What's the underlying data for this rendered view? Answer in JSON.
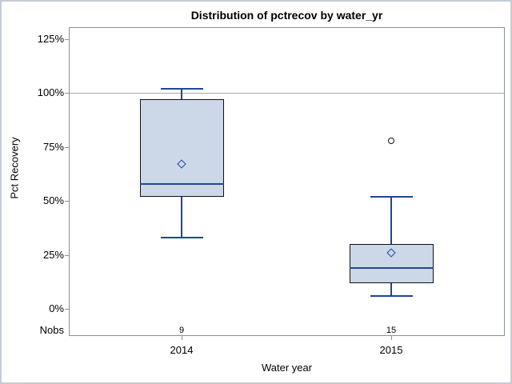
{
  "title": "Distribution of pctrecov by water_yr",
  "colors": {
    "box_fill": "#ccd8e8",
    "box_border": "#0f1216",
    "line_blue": "#1d4799",
    "outlier": "#0f1216",
    "frame_gray": "#8b9199",
    "ref_line_gray": "#a4aab1"
  },
  "chart_data": {
    "type": "box",
    "title": "Distribution of pctrecov by water_yr",
    "xlabel": "Water year",
    "ylabel": "Pct Recovery",
    "ylim": [
      0,
      125
    ],
    "y_tick_values": [
      0,
      25,
      50,
      75,
      100,
      125
    ],
    "y_tick_labels": [
      "0%",
      "25%",
      "50%",
      "75%",
      "100%",
      "125%"
    ],
    "reference_line_value": 100,
    "grid": false,
    "legend": false,
    "categories": [
      "2014",
      "2015"
    ],
    "nobs_row_label": "Nobs",
    "series": [
      {
        "category": "2014",
        "nobs": "9",
        "whisker_low": 33,
        "q1": 52,
        "median": 58,
        "q3": 97,
        "whisker_high": 102,
        "mean": 67,
        "outliers": []
      },
      {
        "category": "2015",
        "nobs": "15",
        "whisker_low": 6,
        "q1": 12,
        "median": 19,
        "q3": 30,
        "whisker_high": 52,
        "mean": 26,
        "outliers": [
          78
        ]
      }
    ]
  }
}
